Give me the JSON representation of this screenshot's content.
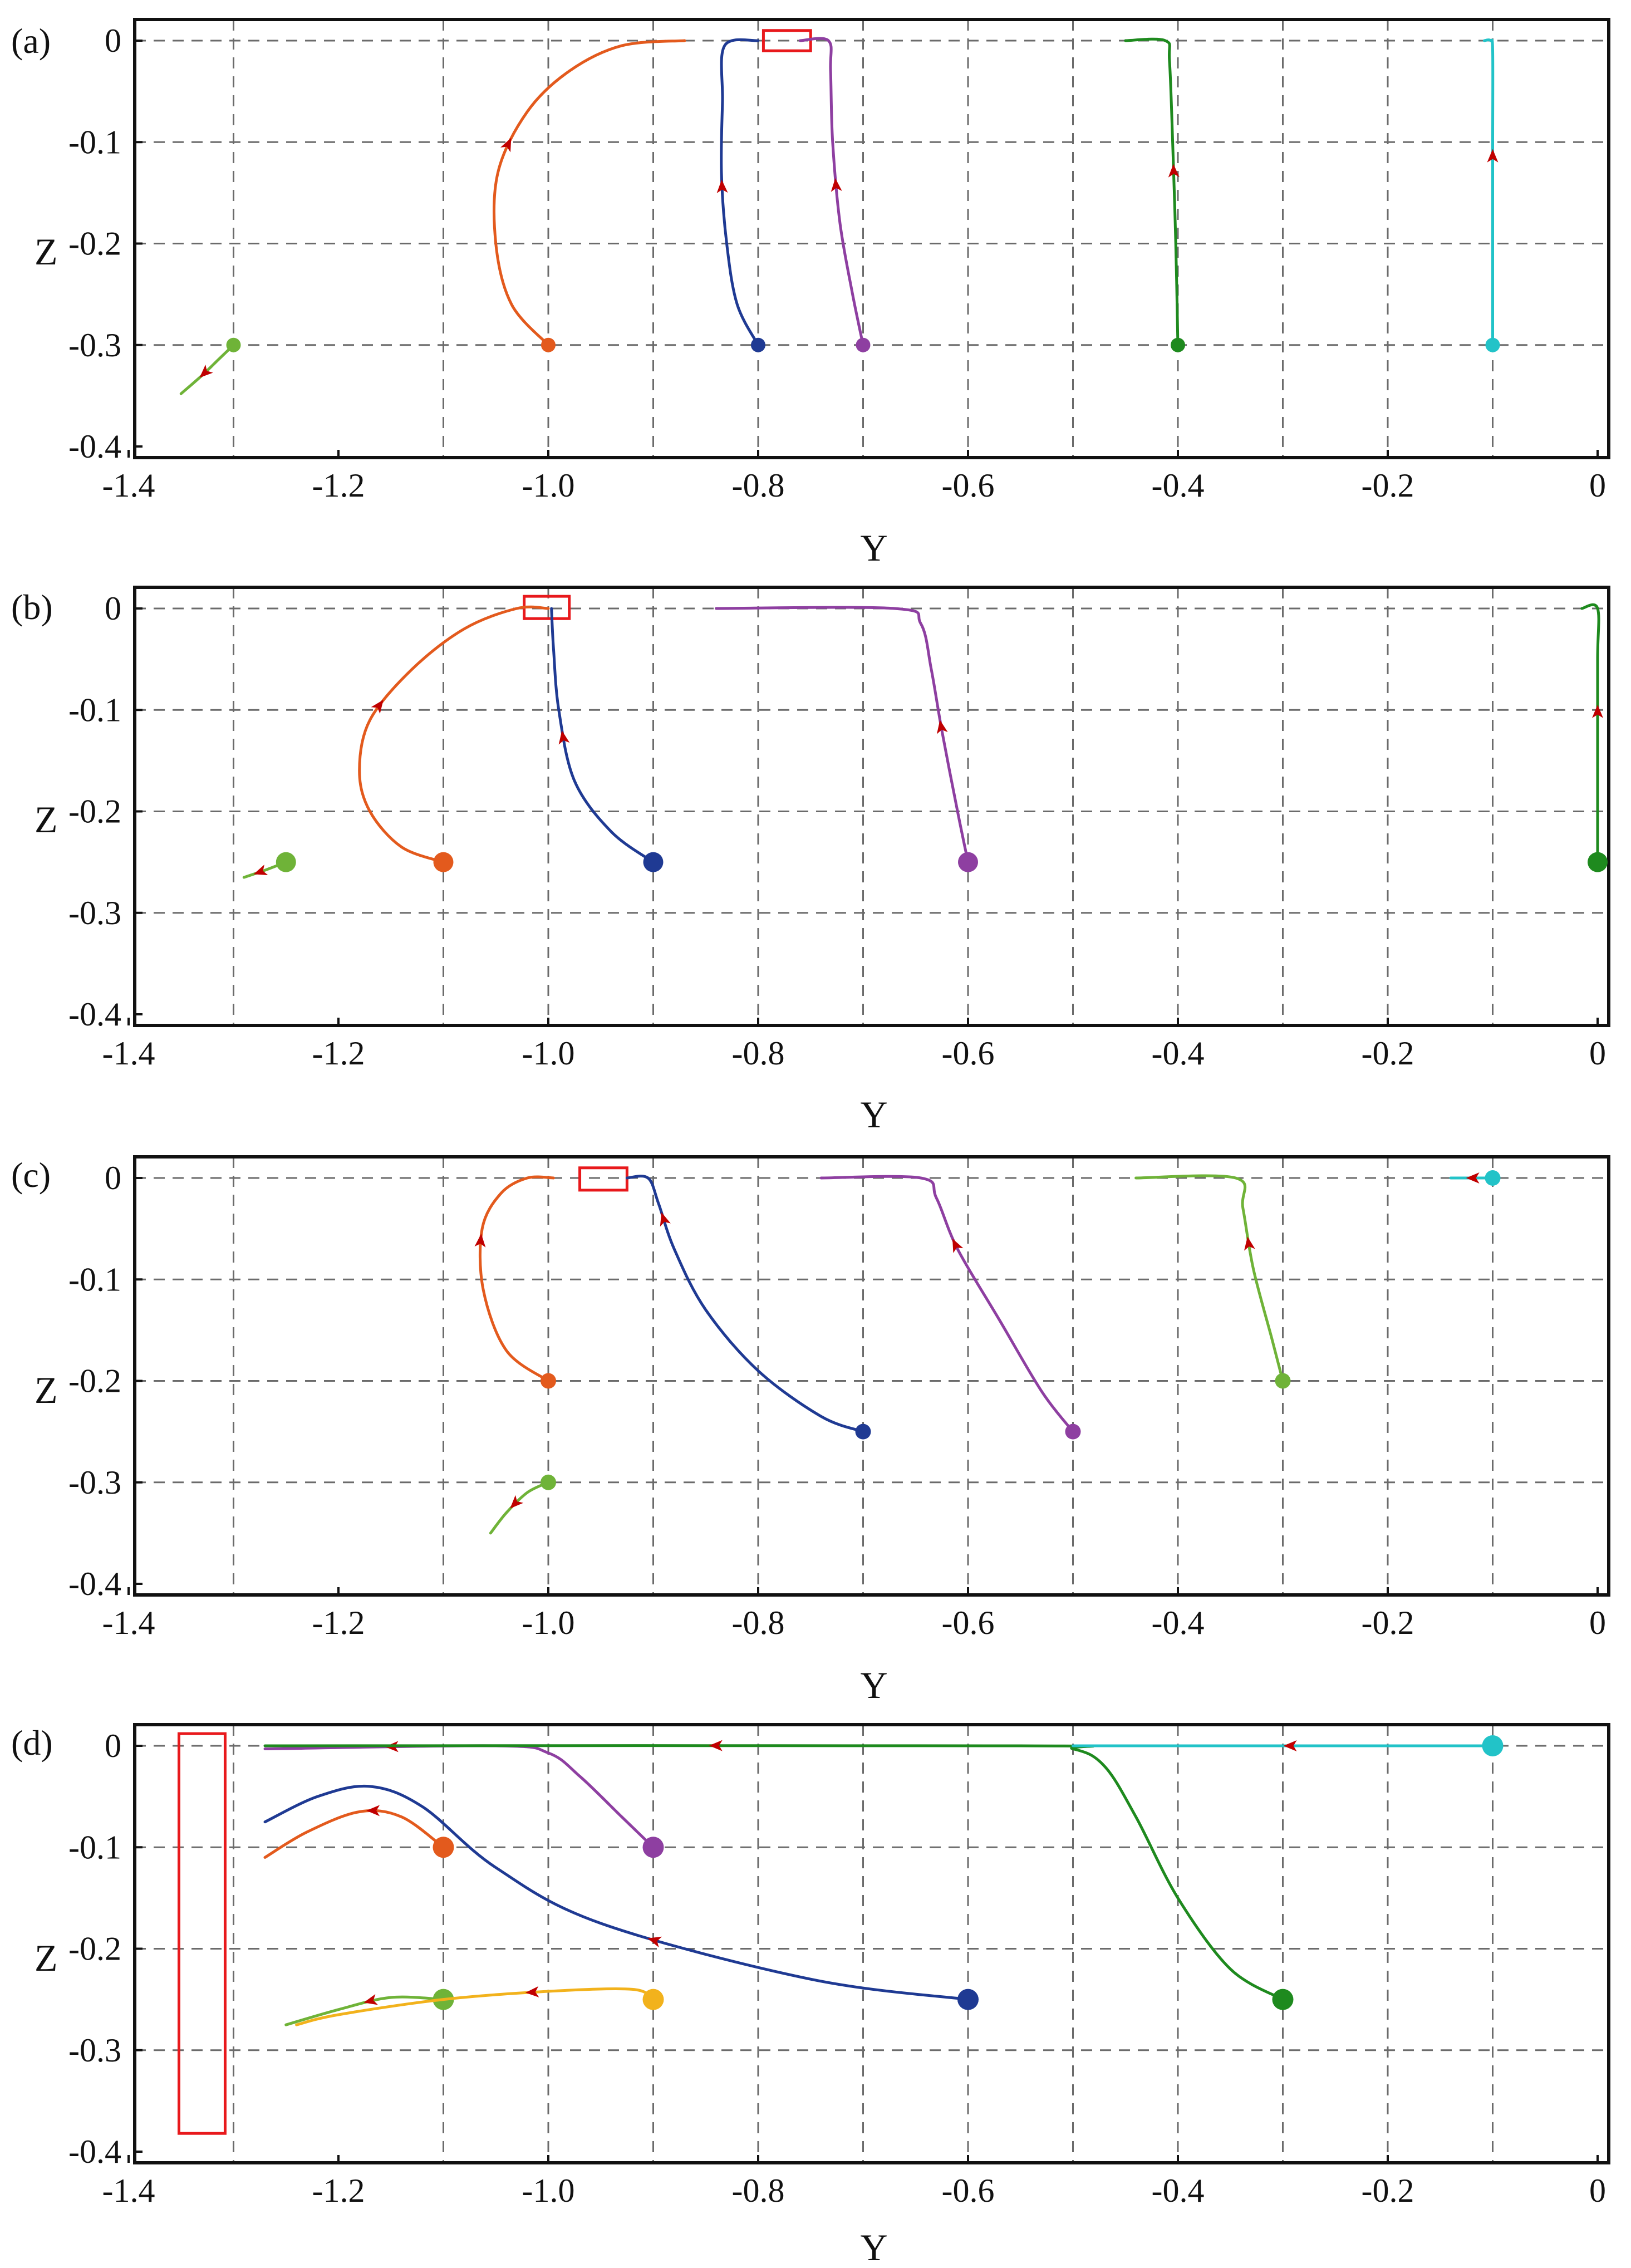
{
  "chart_data": [
    {
      "type": "line",
      "panel": "(a)",
      "xlabel": "Y",
      "ylabel": "Z",
      "xlim": [
        -1.4,
        0
      ],
      "ylim": [
        -0.4,
        0
      ],
      "xticks": [
        "-1.4",
        "-1.2",
        "-1.0",
        "-0.8",
        "-0.6",
        "-0.4",
        "-0.2",
        "0"
      ],
      "yticks": [
        "0",
        "-0.1",
        "-0.2",
        "-0.3",
        "-0.4"
      ],
      "grid": true,
      "target_region": {
        "y": [
          -0.795,
          -0.75
        ],
        "z": [
          -0.01,
          0.01
        ]
      },
      "series": [
        {
          "color": "#e35a1d",
          "start": [
            -1.0,
            -0.3
          ],
          "points": [
            [
              -1.0,
              -0.3
            ],
            [
              -1.035,
              -0.26
            ],
            [
              -1.05,
              -0.2
            ],
            [
              -1.048,
              -0.13
            ],
            [
              -1.02,
              -0.07
            ],
            [
              -0.98,
              -0.03
            ],
            [
              -0.93,
              -0.005
            ],
            [
              -0.87,
              0
            ]
          ],
          "arrows": [
            0.5
          ]
        },
        {
          "color": "#1f3a93",
          "start": [
            -0.8,
            -0.3
          ],
          "points": [
            [
              -0.8,
              -0.3
            ],
            [
              -0.82,
              -0.26
            ],
            [
              -0.83,
              -0.2
            ],
            [
              -0.835,
              -0.13
            ],
            [
              -0.834,
              -0.06
            ],
            [
              -0.832,
              -0.005
            ],
            [
              -0.8,
              0
            ]
          ],
          "arrows": [
            0.48
          ]
        },
        {
          "color": "#8e3fa1",
          "start": [
            -0.7,
            -0.3
          ],
          "points": [
            [
              -0.7,
              -0.3
            ],
            [
              -0.71,
              -0.25
            ],
            [
              -0.722,
              -0.18
            ],
            [
              -0.729,
              -0.1
            ],
            [
              -0.731,
              -0.03
            ],
            [
              -0.733,
              0
            ],
            [
              -0.76,
              0
            ]
          ],
          "arrows": [
            0.48
          ]
        },
        {
          "color": "#1e8a1e",
          "start": [
            -0.4,
            -0.3
          ],
          "points": [
            [
              -0.4,
              -0.3
            ],
            [
              -0.402,
              -0.2
            ],
            [
              -0.405,
              -0.1
            ],
            [
              -0.408,
              -0.02
            ],
            [
              -0.412,
              0
            ],
            [
              -0.45,
              0
            ]
          ],
          "arrows": [
            0.5
          ]
        },
        {
          "color": "#22c3c8",
          "start": [
            -0.1,
            -0.3
          ],
          "points": [
            [
              -0.1,
              -0.3
            ],
            [
              -0.1,
              -0.2
            ],
            [
              -0.1,
              -0.1
            ],
            [
              -0.1,
              -0.01
            ],
            [
              -0.102,
              0
            ],
            [
              -0.108,
              0
            ]
          ],
          "arrows": [
            0.6
          ]
        },
        {
          "color": "#6fb338",
          "start": [
            -1.3,
            -0.3
          ],
          "points": [
            [
              -1.3,
              -0.3
            ],
            [
              -1.315,
              -0.315
            ],
            [
              -1.33,
              -0.33
            ],
            [
              -1.35,
              -0.348
            ]
          ],
          "arrows": [
            0.55
          ]
        }
      ]
    },
    {
      "type": "line",
      "panel": "(b)",
      "xlabel": "Y",
      "ylabel": "Z",
      "xlim": [
        -1.4,
        0
      ],
      "ylim": [
        -0.4,
        0
      ],
      "xticks": [
        "-1.4",
        "-1.2",
        "-1.0",
        "-0.8",
        "-0.6",
        "-0.4",
        "-0.2",
        "0"
      ],
      "yticks": [
        "0",
        "-0.1",
        "-0.2",
        "-0.3",
        "-0.4"
      ],
      "grid": true,
      "target_region": {
        "y": [
          -1.023,
          -0.98
        ],
        "z": [
          -0.01,
          0.012
        ]
      },
      "series": [
        {
          "color": "#e35a1d",
          "start": [
            -1.1,
            -0.25
          ],
          "points": [
            [
              -1.1,
              -0.25
            ],
            [
              -1.14,
              -0.235
            ],
            [
              -1.17,
              -0.2
            ],
            [
              -1.18,
              -0.16
            ],
            [
              -1.17,
              -0.11
            ],
            [
              -1.13,
              -0.06
            ],
            [
              -1.08,
              -0.02
            ],
            [
              -1.03,
              0
            ],
            [
              -1.0,
              0
            ]
          ],
          "arrows": [
            0.5
          ]
        },
        {
          "color": "#1f3a93",
          "start": [
            -0.9,
            -0.25
          ],
          "points": [
            [
              -0.9,
              -0.25
            ],
            [
              -0.94,
              -0.22
            ],
            [
              -0.975,
              -0.17
            ],
            [
              -0.99,
              -0.1
            ],
            [
              -0.995,
              -0.04
            ],
            [
              -0.997,
              0
            ]
          ],
          "arrows": [
            0.55
          ]
        },
        {
          "color": "#8e3fa1",
          "start": [
            -0.6,
            -0.25
          ],
          "points": [
            [
              -0.6,
              -0.25
            ],
            [
              -0.61,
              -0.2
            ],
            [
              -0.625,
              -0.12
            ],
            [
              -0.635,
              -0.06
            ],
            [
              -0.645,
              -0.015
            ],
            [
              -0.67,
              0
            ],
            [
              -0.84,
              0
            ]
          ],
          "arrows": [
            0.3
          ]
        },
        {
          "color": "#1e8a1e",
          "start": [
            0.0,
            -0.25
          ],
          "points": [
            [
              0.0,
              -0.25
            ],
            [
              0.0,
              -0.15
            ],
            [
              0.0,
              -0.05
            ],
            [
              0.0,
              0
            ],
            [
              -0.015,
              0
            ]
          ],
          "arrows": [
            0.55
          ]
        },
        {
          "color": "#6fb338",
          "start": [
            -1.25,
            -0.25
          ],
          "points": [
            [
              -1.25,
              -0.25
            ],
            [
              -1.27,
              -0.258
            ],
            [
              -1.29,
              -0.265
            ]
          ],
          "arrows": [
            0.6
          ]
        }
      ]
    },
    {
      "type": "line",
      "panel": "(c)",
      "xlabel": "Y",
      "ylabel": "Z",
      "xlim": [
        -1.4,
        0
      ],
      "ylim": [
        -0.4,
        0
      ],
      "xticks": [
        "-1.4",
        "-1.2",
        "-1.0",
        "-0.8",
        "-0.6",
        "-0.4",
        "-0.2",
        "0"
      ],
      "yticks": [
        "0",
        "-0.1",
        "-0.2",
        "-0.3",
        "-0.4"
      ],
      "grid": true,
      "target_region": {
        "y": [
          -0.97,
          -0.925
        ],
        "z": [
          -0.012,
          0.01
        ]
      },
      "series": [
        {
          "color": "#e35a1d",
          "start": [
            -1.0,
            -0.2
          ],
          "points": [
            [
              -1.0,
              -0.2
            ],
            [
              -1.04,
              -0.17
            ],
            [
              -1.062,
              -0.11
            ],
            [
              -1.063,
              -0.05
            ],
            [
              -1.045,
              -0.015
            ],
            [
              -1.02,
              0
            ],
            [
              -0.995,
              0
            ]
          ],
          "arrows": [
            0.6
          ]
        },
        {
          "color": "#1f3a93",
          "start": [
            -0.7,
            -0.25
          ],
          "points": [
            [
              -0.7,
              -0.25
            ],
            [
              -0.74,
              -0.235
            ],
            [
              -0.8,
              -0.19
            ],
            [
              -0.85,
              -0.13
            ],
            [
              -0.88,
              -0.07
            ],
            [
              -0.895,
              -0.025
            ],
            [
              -0.905,
              0
            ],
            [
              -0.925,
              0
            ]
          ],
          "arrows": [
            0.82
          ]
        },
        {
          "color": "#8e3fa1",
          "start": [
            -0.5,
            -0.25
          ],
          "points": [
            [
              -0.5,
              -0.25
            ],
            [
              -0.53,
              -0.21
            ],
            [
              -0.57,
              -0.14
            ],
            [
              -0.61,
              -0.07
            ],
            [
              -0.63,
              -0.02
            ],
            [
              -0.645,
              0
            ],
            [
              -0.74,
              0
            ]
          ],
          "arrows": [
            0.55
          ]
        },
        {
          "color": "#6fb338",
          "start": [
            -0.3,
            -0.2
          ],
          "points": [
            [
              -0.3,
              -0.2
            ],
            [
              -0.31,
              -0.16
            ],
            [
              -0.328,
              -0.09
            ],
            [
              -0.338,
              -0.03
            ],
            [
              -0.345,
              0
            ],
            [
              -0.44,
              0
            ]
          ],
          "arrows": [
            0.45
          ]
        },
        {
          "color": "#22c3c8",
          "start": [
            -0.1,
            0.0
          ],
          "points": [
            [
              -0.1,
              0
            ],
            [
              -0.12,
              0
            ],
            [
              -0.14,
              0
            ]
          ],
          "arrows": [
            0.45
          ]
        },
        {
          "color": "#6fb338",
          "start": [
            -1.0,
            -0.3
          ],
          "points": [
            [
              -1.0,
              -0.3
            ],
            [
              -1.02,
              -0.31
            ],
            [
              -1.04,
              -0.33
            ],
            [
              -1.055,
              -0.35
            ]
          ],
          "arrows": [
            0.5
          ]
        }
      ]
    },
    {
      "type": "line",
      "panel": "(d)",
      "xlabel": "Y",
      "ylabel": "Z",
      "xlim": [
        -1.4,
        0
      ],
      "ylim": [
        -0.4,
        0
      ],
      "xticks": [
        "-1.4",
        "-1.2",
        "-1.0",
        "-0.8",
        "-0.6",
        "-0.4",
        "-0.2",
        "0"
      ],
      "yticks": [
        "0",
        "-0.1",
        "-0.2",
        "-0.3",
        "-0.4"
      ],
      "grid": true,
      "target_region": {
        "y": [
          -1.352,
          -1.308
        ],
        "z": [
          -0.382,
          0.012
        ]
      },
      "series": [
        {
          "color": "#e35a1d",
          "start": [
            -1.1,
            -0.1
          ],
          "points": [
            [
              -1.1,
              -0.1
            ],
            [
              -1.14,
              -0.07
            ],
            [
              -1.18,
              -0.065
            ],
            [
              -1.23,
              -0.085
            ],
            [
              -1.27,
              -0.11
            ]
          ],
          "arrows": [
            0.4
          ]
        },
        {
          "color": "#1f3a93",
          "start": [
            -0.6,
            -0.25
          ],
          "points": [
            [
              -0.6,
              -0.25
            ],
            [
              -0.75,
              -0.23
            ],
            [
              -0.95,
              -0.175
            ],
            [
              -1.05,
              -0.12
            ],
            [
              -1.12,
              -0.06
            ],
            [
              -1.17,
              -0.04
            ],
            [
              -1.22,
              -0.05
            ],
            [
              -1.27,
              -0.075
            ]
          ],
          "arrows": [
            0.42
          ]
        },
        {
          "color": "#8e3fa1",
          "start": [
            -0.9,
            -0.1
          ],
          "points": [
            [
              -0.9,
              -0.1
            ],
            [
              -0.93,
              -0.07
            ],
            [
              -0.97,
              -0.03
            ],
            [
              -1.0,
              -0.007
            ],
            [
              -1.05,
              0
            ],
            [
              -1.27,
              -0.003
            ]
          ],
          "arrows": [
            0.7
          ]
        },
        {
          "color": "#1e8a1e",
          "start": [
            -0.3,
            -0.25
          ],
          "points": [
            [
              -0.3,
              -0.25
            ],
            [
              -0.35,
              -0.22
            ],
            [
              -0.4,
              -0.15
            ],
            [
              -0.44,
              -0.07
            ],
            [
              -0.47,
              -0.02
            ],
            [
              -0.5,
              -0.003
            ],
            [
              -0.55,
              0
            ],
            [
              -1.27,
              0
            ]
          ],
          "arrows": [
            0.62
          ]
        },
        {
          "color": "#22c3c8",
          "start": [
            -0.1,
            0.0
          ],
          "points": [
            [
              -0.1,
              0
            ],
            [
              -0.3,
              0
            ],
            [
              -0.5,
              0
            ]
          ],
          "arrows": [
            0.48
          ]
        },
        {
          "color": "#6fb338",
          "start": [
            -1.1,
            -0.25
          ],
          "points": [
            [
              -1.1,
              -0.25
            ],
            [
              -1.15,
              -0.248
            ],
            [
              -1.2,
              -0.26
            ],
            [
              -1.25,
              -0.275
            ]
          ],
          "arrows": [
            0.45
          ]
        },
        {
          "color": "#f2b21c",
          "start": [
            -0.9,
            -0.25
          ],
          "points": [
            [
              -0.9,
              -0.25
            ],
            [
              -0.92,
              -0.24
            ],
            [
              -1.0,
              -0.242
            ],
            [
              -1.1,
              -0.25
            ],
            [
              -1.2,
              -0.265
            ],
            [
              -1.24,
              -0.275
            ]
          ],
          "arrows": [
            0.34
          ]
        }
      ]
    }
  ]
}
